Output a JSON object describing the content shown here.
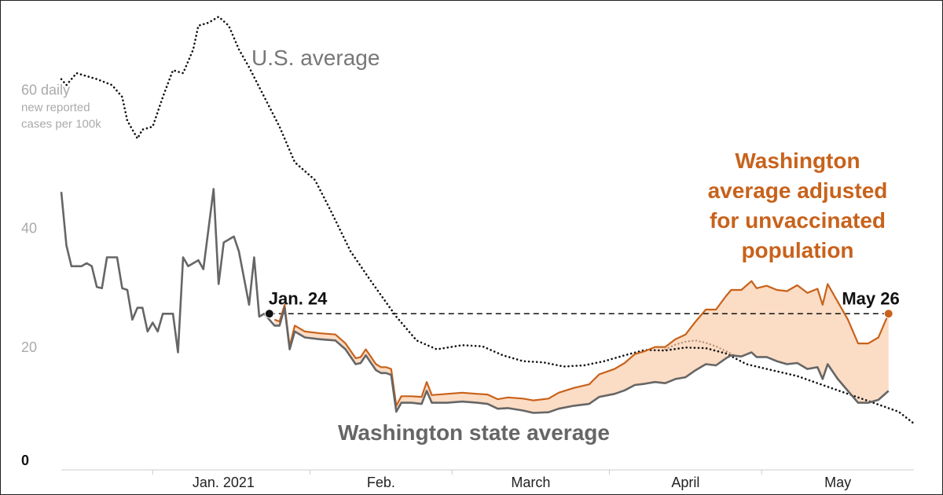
{
  "chart_data": {
    "type": "line",
    "y_axis": {
      "ticks": [
        {
          "value": 0,
          "label": "0"
        },
        {
          "value": 20,
          "label": "20"
        },
        {
          "value": 40,
          "label": "40"
        }
      ],
      "top_label_value": 60,
      "top_label_lines": [
        "60 daily",
        "new reported",
        "cases per 100k"
      ],
      "ylim": [
        0,
        77
      ]
    },
    "x_axis": {
      "range": [
        "2020-12-14",
        "2021-05-31"
      ],
      "ticks": [
        {
          "date": "2021-01-01",
          "label": "Jan. 2021"
        },
        {
          "date": "2021-02-01",
          "label": "Feb."
        },
        {
          "date": "2021-03-01",
          "label": "March"
        },
        {
          "date": "2021-04-01",
          "label": "April"
        },
        {
          "date": "2021-05-01",
          "label": "May"
        }
      ]
    },
    "colors": {
      "us": "#111111",
      "washington": "#666666",
      "adjusted": "#c8621b",
      "band": "#fbdcc4",
      "reference": "#111111"
    },
    "series": [
      {
        "name": "U.S. average",
        "label_lines": [
          "U.S. average"
        ],
        "style": "dotted",
        "points": [
          [
            "2020-12-14",
            65
          ],
          [
            "2020-12-15",
            64
          ],
          [
            "2020-12-17",
            66
          ],
          [
            "2020-12-19",
            65.5
          ],
          [
            "2020-12-21",
            65
          ],
          [
            "2020-12-24",
            64
          ],
          [
            "2020-12-26",
            62
          ],
          [
            "2020-12-27",
            58
          ],
          [
            "2020-12-29",
            55
          ],
          [
            "2020-12-30",
            56.5
          ],
          [
            "2021-01-01",
            57
          ],
          [
            "2021-01-03",
            62
          ],
          [
            "2021-01-05",
            66.5
          ],
          [
            "2021-01-07",
            66
          ],
          [
            "2021-01-09",
            70
          ],
          [
            "2021-01-10",
            74
          ],
          [
            "2021-01-12",
            74.5
          ],
          [
            "2021-01-14",
            75.5
          ],
          [
            "2021-01-16",
            74
          ],
          [
            "2021-01-18",
            70
          ],
          [
            "2021-01-20",
            67
          ],
          [
            "2021-01-23",
            62
          ],
          [
            "2021-01-26",
            57
          ],
          [
            "2021-01-29",
            51
          ],
          [
            "2021-02-02",
            48
          ],
          [
            "2021-02-05",
            43
          ],
          [
            "2021-02-09",
            36
          ],
          [
            "2021-02-13",
            31
          ],
          [
            "2021-02-18",
            25
          ],
          [
            "2021-02-22",
            21
          ],
          [
            "2021-02-26",
            19.5
          ],
          [
            "2021-03-03",
            20.2
          ],
          [
            "2021-03-07",
            20
          ],
          [
            "2021-03-11",
            18.5
          ],
          [
            "2021-03-15",
            17.5
          ],
          [
            "2021-03-19",
            17.3
          ],
          [
            "2021-03-23",
            16.6
          ],
          [
            "2021-03-27",
            16.8
          ],
          [
            "2021-03-31",
            17.5
          ],
          [
            "2021-04-04",
            18.5
          ],
          [
            "2021-04-08",
            19.4
          ],
          [
            "2021-04-12",
            19.3
          ],
          [
            "2021-04-16",
            19.8
          ],
          [
            "2021-04-20",
            19.7
          ],
          [
            "2021-04-24",
            18.8
          ],
          [
            "2021-04-28",
            17
          ],
          [
            "2021-05-03",
            16
          ],
          [
            "2021-05-08",
            15
          ],
          [
            "2021-05-13",
            13.5
          ],
          [
            "2021-05-18",
            12
          ],
          [
            "2021-05-23",
            10.5
          ],
          [
            "2021-05-28",
            9
          ],
          [
            "2021-05-31",
            7
          ]
        ]
      },
      {
        "name": "Washington state average",
        "label_lines": [
          "Washington state average"
        ],
        "style": "solid",
        "points": [
          [
            "2020-12-14",
            46
          ],
          [
            "2020-12-15",
            37
          ],
          [
            "2020-12-16",
            33.5
          ],
          [
            "2020-12-18",
            33.5
          ],
          [
            "2020-12-19",
            34
          ],
          [
            "2020-12-20",
            33.5
          ],
          [
            "2020-12-21",
            30
          ],
          [
            "2020-12-22",
            29.8
          ],
          [
            "2020-12-23",
            35
          ],
          [
            "2020-12-25",
            35
          ],
          [
            "2020-12-26",
            29.8
          ],
          [
            "2020-12-27",
            29.5
          ],
          [
            "2020-12-28",
            24.5
          ],
          [
            "2020-12-29",
            26.5
          ],
          [
            "2020-12-30",
            26.5
          ],
          [
            "2020-12-31",
            22.5
          ],
          [
            "2021-01-01",
            24
          ],
          [
            "2021-01-02",
            22.5
          ],
          [
            "2021-01-03",
            25.5
          ],
          [
            "2021-01-05",
            25.5
          ],
          [
            "2021-01-06",
            19
          ],
          [
            "2021-01-07",
            35
          ],
          [
            "2021-01-08",
            33.5
          ],
          [
            "2021-01-10",
            34.5
          ],
          [
            "2021-01-11",
            33
          ],
          [
            "2021-01-13",
            46.5
          ],
          [
            "2021-01-14",
            30.5
          ],
          [
            "2021-01-15",
            37.5
          ],
          [
            "2021-01-17",
            38.5
          ],
          [
            "2021-01-18",
            36
          ],
          [
            "2021-01-20",
            27
          ],
          [
            "2021-01-21",
            35
          ],
          [
            "2021-01-22",
            25
          ],
          [
            "2021-01-23",
            25.5
          ],
          [
            "2021-01-25",
            23.5
          ],
          [
            "2021-01-26",
            23.5
          ],
          [
            "2021-01-27",
            26.5
          ],
          [
            "2021-01-28",
            19.5
          ],
          [
            "2021-01-29",
            22.5
          ],
          [
            "2021-01-31",
            21.5
          ],
          [
            "2021-02-03",
            21.2
          ],
          [
            "2021-02-06",
            21
          ],
          [
            "2021-02-08",
            19.5
          ],
          [
            "2021-02-10",
            17
          ],
          [
            "2021-02-11",
            17.2
          ],
          [
            "2021-02-12",
            18.5
          ],
          [
            "2021-02-14",
            16
          ],
          [
            "2021-02-15",
            15.5
          ],
          [
            "2021-02-16",
            15.5
          ],
          [
            "2021-02-17",
            15.2
          ],
          [
            "2021-02-18",
            9
          ],
          [
            "2021-02-19",
            10.5
          ],
          [
            "2021-02-21",
            10.5
          ],
          [
            "2021-02-23",
            10.3
          ],
          [
            "2021-02-24",
            12.5
          ],
          [
            "2021-02-25",
            10.5
          ],
          [
            "2021-02-28",
            10.5
          ],
          [
            "2021-03-03",
            10.7
          ],
          [
            "2021-03-06",
            10.5
          ],
          [
            "2021-03-08",
            10.3
          ],
          [
            "2021-03-10",
            9.5
          ],
          [
            "2021-03-12",
            9.6
          ],
          [
            "2021-03-15",
            9.2
          ],
          [
            "2021-03-17",
            8.8
          ],
          [
            "2021-03-20",
            8.9
          ],
          [
            "2021-03-22",
            9.5
          ],
          [
            "2021-03-25",
            10
          ],
          [
            "2021-03-28",
            10.3
          ],
          [
            "2021-03-30",
            11.5
          ],
          [
            "2021-04-02",
            12
          ],
          [
            "2021-04-04",
            12.6
          ],
          [
            "2021-04-06",
            13.5
          ],
          [
            "2021-04-08",
            13.7
          ],
          [
            "2021-04-10",
            14
          ],
          [
            "2021-04-12",
            13.8
          ],
          [
            "2021-04-14",
            14.5
          ],
          [
            "2021-04-16",
            14.8
          ],
          [
            "2021-04-18",
            16
          ],
          [
            "2021-04-19",
            16.5
          ],
          [
            "2021-04-20",
            17
          ],
          [
            "2021-04-22",
            16.8
          ],
          [
            "2021-04-24",
            18
          ],
          [
            "2021-04-25",
            18.5
          ],
          [
            "2021-04-27",
            18.3
          ],
          [
            "2021-04-29",
            19
          ],
          [
            "2021-04-30",
            18.2
          ],
          [
            "2021-05-02",
            18.2
          ],
          [
            "2021-05-04",
            17.5
          ],
          [
            "2021-05-06",
            17
          ],
          [
            "2021-05-08",
            17.2
          ],
          [
            "2021-05-10",
            16.2
          ],
          [
            "2021-05-12",
            16.5
          ],
          [
            "2021-05-13",
            14.5
          ],
          [
            "2021-05-14",
            17
          ],
          [
            "2021-05-16",
            14.5
          ],
          [
            "2021-05-18",
            12.5
          ],
          [
            "2021-05-20",
            10.5
          ],
          [
            "2021-05-22",
            10.5
          ],
          [
            "2021-05-24",
            11
          ],
          [
            "2021-05-26",
            12.5
          ]
        ]
      },
      {
        "name": "Washington average adjusted for unvaccinated population",
        "label_lines": [
          "Washington",
          "average adjusted",
          "for unvaccinated",
          "population"
        ],
        "style": "solid",
        "points": [
          [
            "2021-01-25",
            24.5
          ],
          [
            "2021-01-26",
            24.2
          ],
          [
            "2021-01-27",
            27
          ],
          [
            "2021-01-28",
            20
          ],
          [
            "2021-01-29",
            23.5
          ],
          [
            "2021-01-31",
            22.5
          ],
          [
            "2021-02-03",
            22.2
          ],
          [
            "2021-02-06",
            22
          ],
          [
            "2021-02-08",
            20.5
          ],
          [
            "2021-02-10",
            18
          ],
          [
            "2021-02-11",
            18.2
          ],
          [
            "2021-02-12",
            19.5
          ],
          [
            "2021-02-14",
            17
          ],
          [
            "2021-02-15",
            16.5
          ],
          [
            "2021-02-16",
            16.5
          ],
          [
            "2021-02-17",
            16.2
          ],
          [
            "2021-02-18",
            10
          ],
          [
            "2021-02-19",
            11.6
          ],
          [
            "2021-02-21",
            11.6
          ],
          [
            "2021-02-23",
            11.5
          ],
          [
            "2021-02-24",
            14
          ],
          [
            "2021-02-25",
            11.8
          ],
          [
            "2021-02-28",
            12
          ],
          [
            "2021-03-03",
            12.2
          ],
          [
            "2021-03-06",
            12
          ],
          [
            "2021-03-08",
            11.9
          ],
          [
            "2021-03-10",
            11.1
          ],
          [
            "2021-03-12",
            11.4
          ],
          [
            "2021-03-15",
            11.2
          ],
          [
            "2021-03-17",
            10.9
          ],
          [
            "2021-03-20",
            11.2
          ],
          [
            "2021-03-22",
            12.2
          ],
          [
            "2021-03-25",
            13
          ],
          [
            "2021-03-28",
            13.6
          ],
          [
            "2021-03-30",
            15.3
          ],
          [
            "2021-04-02",
            16.2
          ],
          [
            "2021-04-04",
            17.2
          ],
          [
            "2021-04-06",
            18.7
          ],
          [
            "2021-04-08",
            19.2
          ],
          [
            "2021-04-10",
            19.9
          ],
          [
            "2021-04-12",
            19.9
          ],
          [
            "2021-04-14",
            21.2
          ],
          [
            "2021-04-16",
            22
          ],
          [
            "2021-04-18",
            24.2
          ],
          [
            "2021-04-19",
            25.2
          ],
          [
            "2021-04-20",
            26.2
          ],
          [
            "2021-04-22",
            26.2
          ],
          [
            "2021-04-24",
            28.5
          ],
          [
            "2021-04-25",
            29.5
          ],
          [
            "2021-04-27",
            29.5
          ],
          [
            "2021-04-29",
            31
          ],
          [
            "2021-04-30",
            29.8
          ],
          [
            "2021-05-02",
            30.2
          ],
          [
            "2021-05-04",
            29.5
          ],
          [
            "2021-05-06",
            29.3
          ],
          [
            "2021-05-08",
            30.3
          ],
          [
            "2021-05-10",
            29
          ],
          [
            "2021-05-12",
            29.7
          ],
          [
            "2021-05-13",
            27
          ],
          [
            "2021-05-14",
            30.5
          ],
          [
            "2021-05-16",
            27.5
          ],
          [
            "2021-05-18",
            24.5
          ],
          [
            "2021-05-20",
            20.5
          ],
          [
            "2021-05-22",
            20.5
          ],
          [
            "2021-05-24",
            21.5
          ],
          [
            "2021-05-26",
            25.5
          ]
        ]
      }
    ],
    "projection": {
      "style": "dotted",
      "points": [
        [
          "2021-04-12",
          19.5
        ],
        [
          "2021-04-14",
          20.3
        ],
        [
          "2021-04-16",
          20.8
        ],
        [
          "2021-04-18",
          21
        ],
        [
          "2021-04-20",
          20.6
        ],
        [
          "2021-04-22",
          20
        ],
        [
          "2021-04-24",
          19.2
        ],
        [
          "2021-04-26",
          18.3
        ]
      ]
    },
    "reference_line": {
      "value": 25.5,
      "style": "dashed",
      "from": "2021-01-24",
      "to": "2021-05-26"
    },
    "annotations": [
      {
        "label": "Jan. 24",
        "date": "2021-01-24",
        "value": 25.5,
        "color": "#111111"
      },
      {
        "label": "May 26",
        "date": "2021-05-26",
        "value": 25.5,
        "color": "#c8621b"
      }
    ]
  }
}
